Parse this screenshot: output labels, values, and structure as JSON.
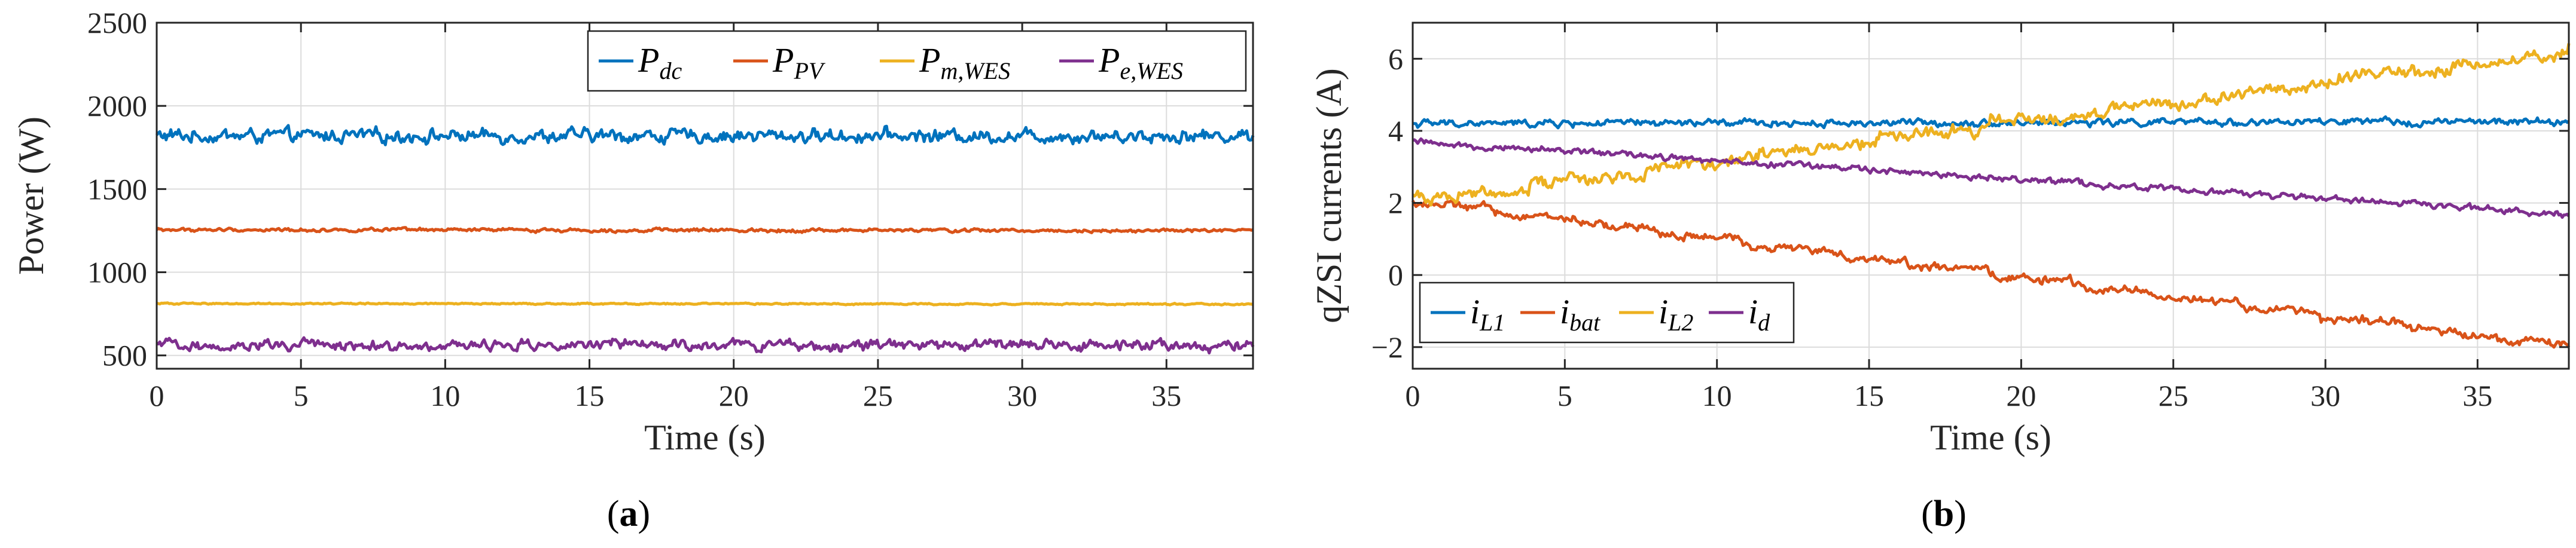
{
  "chart_data": [
    {
      "type": "line",
      "panel_label": "a",
      "xlabel": "Time (s)",
      "ylabel": "Power (W)",
      "xlim": [
        0,
        38
      ],
      "ylim": [
        420,
        2500
      ],
      "xticks": [
        0,
        5,
        10,
        15,
        20,
        25,
        30,
        35
      ],
      "yticks": [
        500,
        1000,
        1500,
        2000,
        2500
      ],
      "grid": true,
      "legend_position": "top-right",
      "series": [
        {
          "name": "P",
          "sub": "dc",
          "color": "#0072BD",
          "start": 1820,
          "end": 1820,
          "noise": 28,
          "steps": 0
        },
        {
          "name": "P",
          "sub": "PV",
          "color": "#D95319",
          "start": 1255,
          "end": 1250,
          "noise": 7,
          "steps": 0
        },
        {
          "name": "P",
          "sub": "m,WES",
          "color": "#EDB120",
          "start": 812,
          "end": 808,
          "noise": 3,
          "steps": 0
        },
        {
          "name": "P",
          "sub": "e,WES",
          "color": "#7E2F8E",
          "start": 560,
          "end": 560,
          "noise": 22,
          "steps": 0
        }
      ]
    },
    {
      "type": "line",
      "panel_label": "b",
      "xlabel": "Time (s)",
      "ylabel": "qZSI currents (A)",
      "xlim": [
        0,
        38
      ],
      "ylim": [
        -2.6,
        7.0
      ],
      "xticks": [
        0,
        5,
        10,
        15,
        20,
        25,
        30,
        35
      ],
      "yticks": [
        -2,
        0,
        2,
        4,
        6
      ],
      "grid": true,
      "legend_position": "bottom-left",
      "series": [
        {
          "name": "i",
          "sub": "L1",
          "color": "#0072BD",
          "start": 4.2,
          "end": 4.25,
          "noise": 0.07,
          "steps": 0
        },
        {
          "name": "i",
          "sub": "bat",
          "color": "#D95319",
          "start": 2.0,
          "end": -2.05,
          "noise": 0.08,
          "steps": 14
        },
        {
          "name": "i",
          "sub": "L2",
          "color": "#EDB120",
          "start": 2.15,
          "end": 6.3,
          "noise": 0.12,
          "steps": 10
        },
        {
          "name": "i",
          "sub": "d",
          "color": "#7E2F8E",
          "start": 3.7,
          "end": 1.7,
          "noise": 0.06,
          "steps": 0
        }
      ]
    }
  ]
}
